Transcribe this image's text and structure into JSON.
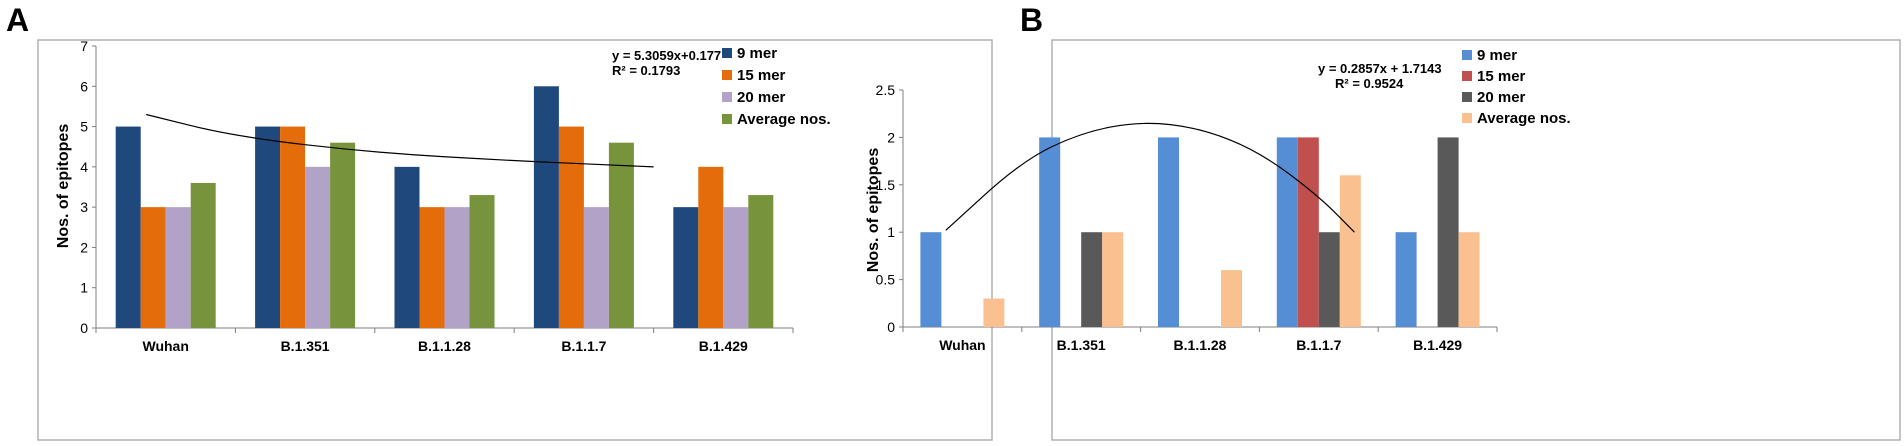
{
  "panels": {
    "a": {
      "letter": "A"
    },
    "b": {
      "letter": "B"
    }
  },
  "chart_data": [
    {
      "type": "bar",
      "panel": "A",
      "categories": [
        "Wuhan",
        "B.1.351",
        "B.1.1.28",
        "B.1.1.7",
        "B.1.429"
      ],
      "series": [
        {
          "name": "9 mer",
          "color": "#1f497d",
          "values": [
            5,
            5,
            4,
            6,
            3
          ]
        },
        {
          "name": "15 mer",
          "color": "#e46c0a",
          "values": [
            3,
            5,
            3,
            5,
            4
          ]
        },
        {
          "name": "20 mer",
          "color": "#b3a2c7",
          "values": [
            3,
            4,
            3,
            3,
            3
          ]
        },
        {
          "name": "Average nos.",
          "color": "#77933c",
          "values": [
            3.6,
            4.6,
            3.3,
            4.6,
            3.3
          ]
        }
      ],
      "ylabel": "Nos. of epitopes",
      "xlabel": "",
      "ylim": [
        0,
        7
      ],
      "yticks": [
        "0",
        "1",
        "2",
        "3",
        "4",
        "5",
        "6",
        "7"
      ],
      "trendline": {
        "type": "decreasing",
        "points": [
          [
            0.36,
            5.3
          ],
          [
            1,
            4.75
          ],
          [
            2,
            4.35
          ],
          [
            3,
            4.15
          ],
          [
            4,
            4.0
          ]
        ]
      },
      "equation": "y = 5.3059x+0.177",
      "r_squared": "R² = 0.1793",
      "legend_position": "top-right"
    },
    {
      "type": "bar",
      "panel": "B",
      "categories": [
        "Wuhan",
        "B.1.351",
        "B.1.1.28",
        "B.1.1.7",
        "B.1.429"
      ],
      "series": [
        {
          "name": "9 mer",
          "color": "#558ed5",
          "values": [
            1,
            2,
            2,
            2,
            1
          ]
        },
        {
          "name": "15 mer",
          "color": "#c0504d",
          "values": [
            0,
            0,
            0,
            2,
            0
          ]
        },
        {
          "name": "20 mer",
          "color": "#595959",
          "values": [
            0,
            1,
            0,
            1,
            2
          ]
        },
        {
          "name": "Average nos.",
          "color": "#fac090",
          "values": [
            0.3,
            1,
            0.6,
            1.6,
            1
          ]
        }
      ],
      "ylabel": "Nos. of epitopes",
      "xlabel": "",
      "ylim": [
        0,
        2.5
      ],
      "yticks": [
        "0",
        "0.5",
        "1",
        "1.5",
        "2",
        "2.5"
      ],
      "trendline": {
        "type": "polynomial",
        "points": [
          [
            0.36,
            1.02
          ],
          [
            1,
            1.75
          ],
          [
            1.5,
            2.05
          ],
          [
            2,
            2.17
          ],
          [
            2.5,
            2.1
          ],
          [
            3,
            1.85
          ],
          [
            3.5,
            1.38
          ],
          [
            3.8,
            1.0
          ]
        ]
      },
      "equation": "y = 0.2857x + 1.7143",
      "r_squared": "R² = 0.9524",
      "legend_position": "top-right"
    }
  ]
}
